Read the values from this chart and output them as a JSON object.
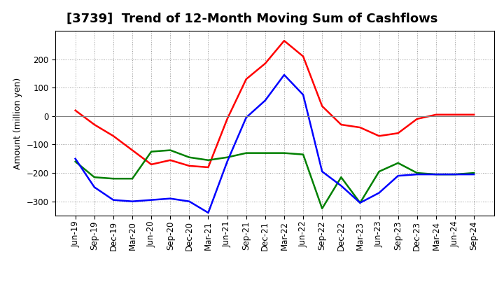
{
  "title": "[3739]  Trend of 12-Month Moving Sum of Cashflows",
  "ylabel": "Amount (million yen)",
  "x_labels": [
    "Jun-19",
    "Sep-19",
    "Dec-19",
    "Mar-20",
    "Jun-20",
    "Sep-20",
    "Dec-20",
    "Mar-21",
    "Jun-21",
    "Sep-21",
    "Dec-21",
    "Mar-22",
    "Jun-22",
    "Sep-22",
    "Dec-22",
    "Mar-23",
    "Jun-23",
    "Sep-23",
    "Dec-23",
    "Mar-24",
    "Jun-24",
    "Sep-24"
  ],
  "operating_cashflow": [
    20,
    -30,
    -70,
    -120,
    -170,
    -155,
    -175,
    -180,
    -10,
    130,
    185,
    265,
    210,
    35,
    -30,
    -40,
    -70,
    -60,
    -10,
    5,
    5,
    5
  ],
  "investing_cashflow": [
    -160,
    -215,
    -220,
    -220,
    -125,
    -120,
    -145,
    -155,
    -145,
    -130,
    -130,
    -130,
    -135,
    -325,
    -215,
    -305,
    -195,
    -165,
    -200,
    -205,
    -205,
    -200
  ],
  "free_cashflow": [
    -150,
    -250,
    -295,
    -300,
    -295,
    -290,
    -300,
    -340,
    -160,
    -5,
    55,
    145,
    75,
    -195,
    -245,
    -305,
    -270,
    -210,
    -205,
    -205,
    -205,
    -205
  ],
  "operating_color": "#FF0000",
  "investing_color": "#008000",
  "free_color": "#0000FF",
  "ylim": [
    -350,
    300
  ],
  "yticks": [
    -300,
    -200,
    -100,
    0,
    100,
    200
  ],
  "grid_color": "#999999",
  "line_width": 1.8,
  "title_fontsize": 13,
  "label_fontsize": 9,
  "tick_fontsize": 8.5,
  "legend_fontsize": 9.5
}
